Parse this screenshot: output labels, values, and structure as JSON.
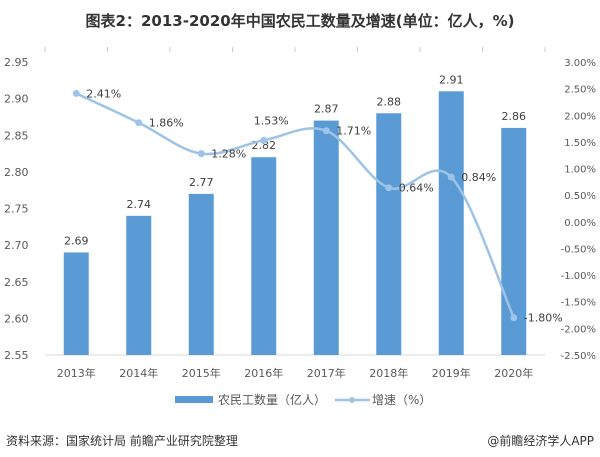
{
  "title": "图表2：2013-2020年中国农民工数量及增速(单位：亿人，%)",
  "source": "资料来源：国家统计局 前瞻产业研究院整理",
  "brand": "@前瞻经济学人APP",
  "chart_data": {
    "type": "bar+line",
    "categories": [
      "2013年",
      "2014年",
      "2015年",
      "2016年",
      "2017年",
      "2018年",
      "2019年",
      "2020年"
    ],
    "series": [
      {
        "name": "农民工数量（亿人）",
        "type": "bar",
        "axis": "left",
        "color": "#5b9bd5",
        "values": [
          2.69,
          2.74,
          2.77,
          2.82,
          2.87,
          2.88,
          2.91,
          2.86
        ],
        "labels": [
          "2.69",
          "2.74",
          "2.77",
          "2.82",
          "2.87",
          "2.88",
          "2.91",
          "2.86"
        ]
      },
      {
        "name": "增速（%）",
        "type": "line",
        "axis": "right",
        "color": "#9dc3e6",
        "smooth": true,
        "values": [
          2.41,
          1.86,
          1.28,
          1.53,
          1.71,
          0.64,
          0.84,
          -1.8
        ],
        "labels": [
          "2.41%",
          "1.86%",
          "1.28%",
          "1.53%",
          "1.71%",
          "0.64%",
          "0.84%",
          "-1.80%"
        ]
      }
    ],
    "left_axis": {
      "ylim": [
        2.55,
        2.95
      ],
      "ticks": [
        "2.55",
        "2.60",
        "2.65",
        "2.70",
        "2.75",
        "2.80",
        "2.85",
        "2.90",
        "2.95"
      ]
    },
    "right_axis": {
      "ylim": [
        -2.5,
        3.0
      ],
      "ticks": [
        "-2.50%",
        "-2.00%",
        "-1.50%",
        "-1.00%",
        "-0.50%",
        "0.00%",
        "0.50%",
        "1.00%",
        "1.50%",
        "2.00%",
        "2.50%",
        "3.00%"
      ]
    },
    "grid": false,
    "legend": "bottom"
  }
}
